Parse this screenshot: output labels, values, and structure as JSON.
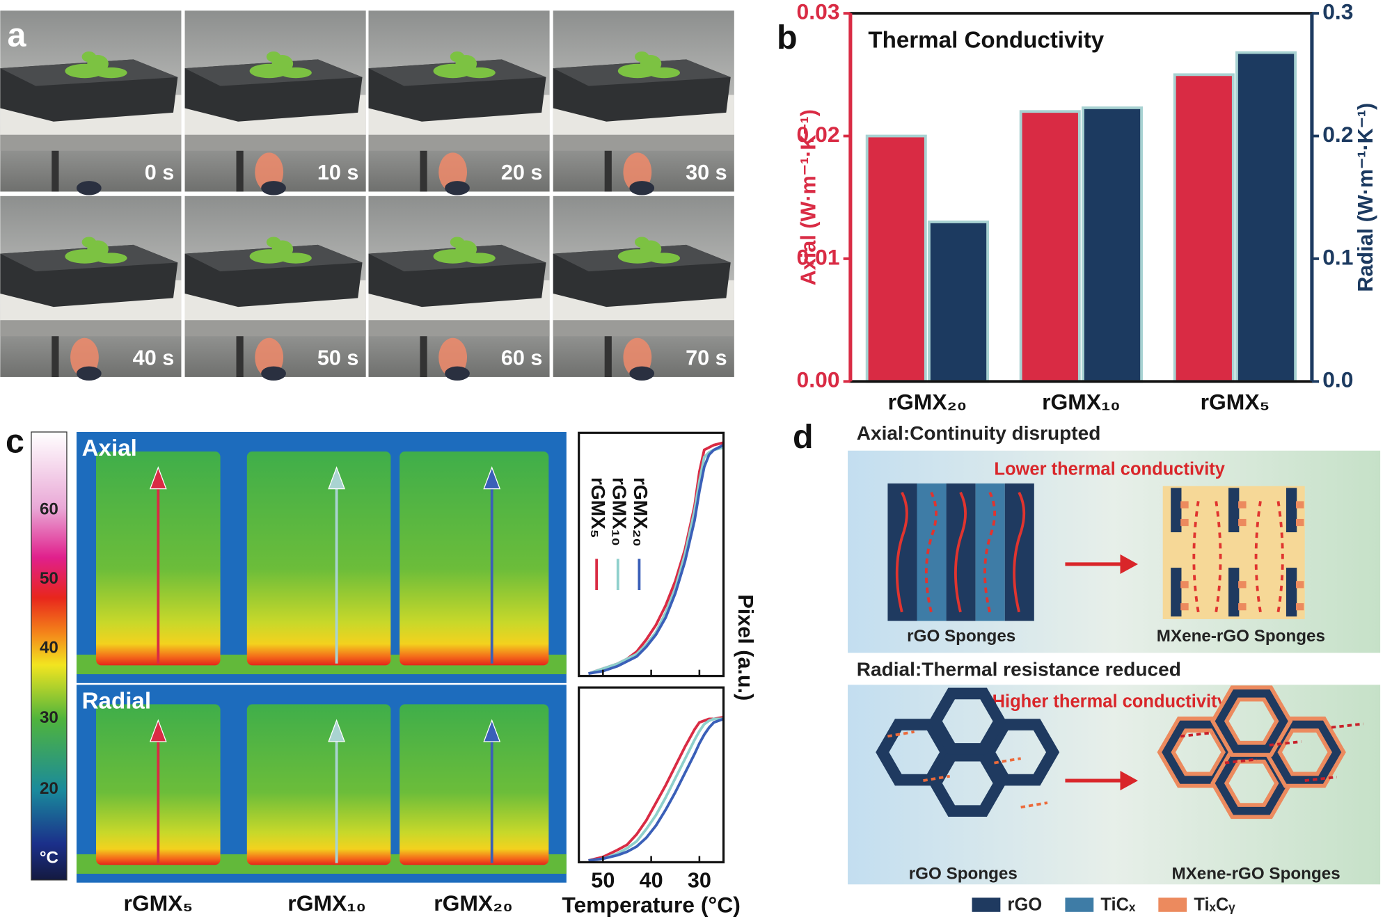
{
  "panels": {
    "a": {
      "letter": "a",
      "times": [
        "0 s",
        "10 s",
        "20 s",
        "30 s",
        "40 s",
        "50 s",
        "60 s",
        "70 s"
      ]
    },
    "c": {
      "letter": "c",
      "colorbar_labels": [
        "60",
        "50",
        "40",
        "30",
        "20",
        "°C"
      ],
      "views": [
        "Axial",
        "Radial"
      ],
      "samples": [
        "rGMX₅",
        "rGMX₁₀",
        "rGMX₂₀"
      ]
    },
    "d": {
      "letter": "d",
      "axial": {
        "heading": "Axial:Continuity disrupted",
        "note": "Lower thermal conductivity",
        "left": "rGO Sponges",
        "right": "MXene-rGO Sponges"
      },
      "radial": {
        "heading": "Radial:Thermal resistance reduced",
        "note": "Higher thermal conductivity",
        "left": "rGO Sponges",
        "right": "MXene-rGO Sponges"
      },
      "legend": [
        {
          "label": "rGO",
          "color": "#1f3a60"
        },
        {
          "label": "TiCₓ",
          "color": "#3e7ca6"
        },
        {
          "label": "TiₓCᵧ",
          "color": "#ec8a5e"
        }
      ]
    }
  },
  "chart_data": [
    {
      "type": "bar",
      "letter": "b",
      "title": "Thermal Conductivity",
      "categories": [
        "rGMX₂₀",
        "rGMX₁₀",
        "rGMX₅"
      ],
      "ylabel": "Axial (W·m⁻¹·K⁻¹)",
      "y2label": "Radial (W·m⁻¹·K⁻¹)",
      "series": [
        {
          "color": "#d92b44",
          "values": [
            0.02,
            0.022,
            0.025
          ]
        },
        {
          "color": "#1c3a60",
          "values": [
            0.13,
            0.223,
            0.268
          ],
          "axis": "y2"
        }
      ],
      "ylim": [
        0,
        0.03
      ],
      "yticks": [
        {
          "value": 0,
          "label": "0.00"
        },
        {
          "value": 0.01,
          "label": "0.01"
        },
        {
          "value": 0.02,
          "label": "0.02"
        },
        {
          "value": 0.03,
          "label": "0.03"
        }
      ],
      "y2lim": [
        0,
        0.3
      ],
      "y2ticks": [
        {
          "value": 0,
          "label": "0.0"
        },
        {
          "value": 0.1,
          "label": "0.1"
        },
        {
          "value": 0.2,
          "label": "0.2"
        },
        {
          "value": 0.3,
          "label": "0.3"
        }
      ]
    },
    {
      "type": "line",
      "x": [
        53,
        50,
        47,
        45,
        43,
        41,
        39,
        37,
        35,
        33,
        31,
        30,
        29,
        28,
        27,
        25
      ],
      "xlim": [
        55,
        25
      ],
      "xticks": [
        50,
        40,
        30
      ],
      "ylim": [
        0,
        1
      ],
      "legend": "inside",
      "series": [
        {
          "name": "rGMX₅",
          "color": "#d92b44",
          "values": [
            0.01,
            0.03,
            0.05,
            0.07,
            0.1,
            0.15,
            0.21,
            0.29,
            0.39,
            0.52,
            0.7,
            0.84,
            0.93,
            0.94,
            0.95,
            0.96
          ]
        },
        {
          "name": "rGMX₁₀",
          "color": "#8fd0cc",
          "values": [
            0.01,
            0.03,
            0.05,
            0.07,
            0.09,
            0.13,
            0.18,
            0.26,
            0.36,
            0.5,
            0.68,
            0.8,
            0.9,
            0.92,
            0.93,
            0.94
          ]
        },
        {
          "name": "rGMX₂₀",
          "color": "#3a5fb8",
          "values": [
            0.01,
            0.02,
            0.04,
            0.06,
            0.08,
            0.12,
            0.17,
            0.24,
            0.34,
            0.47,
            0.64,
            0.76,
            0.86,
            0.91,
            0.93,
            0.95
          ]
        }
      ]
    },
    {
      "type": "line",
      "x": [
        53,
        50,
        47,
        45,
        43,
        41,
        39,
        37,
        35,
        33,
        31,
        30,
        29,
        28,
        27,
        25
      ],
      "xlim": [
        55,
        25
      ],
      "xticks": [
        50,
        40,
        30
      ],
      "ylim": [
        0,
        1
      ],
      "xlabel": "Temperature (°C)",
      "ylabel": "Pixel  (a.u.)",
      "series": [
        {
          "color": "#d92b44",
          "values": [
            0.01,
            0.03,
            0.07,
            0.1,
            0.16,
            0.24,
            0.34,
            0.44,
            0.55,
            0.66,
            0.76,
            0.8,
            0.81,
            0.82,
            0.82,
            0.83
          ]
        },
        {
          "color": "#8fd0cc",
          "values": [
            0.01,
            0.02,
            0.05,
            0.08,
            0.12,
            0.19,
            0.27,
            0.37,
            0.48,
            0.59,
            0.7,
            0.75,
            0.79,
            0.81,
            0.82,
            0.82
          ]
        },
        {
          "color": "#3a5fb8",
          "values": [
            0.01,
            0.02,
            0.04,
            0.06,
            0.09,
            0.14,
            0.21,
            0.3,
            0.4,
            0.51,
            0.62,
            0.68,
            0.73,
            0.77,
            0.8,
            0.82
          ]
        }
      ]
    }
  ]
}
